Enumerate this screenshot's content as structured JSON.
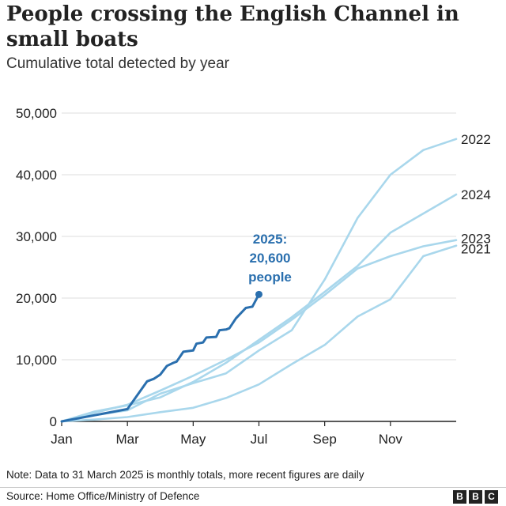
{
  "title": "People crossing the English Channel in small boats",
  "subtitle": "Cumulative total detected by year",
  "note": "Note: Data to 31 March 2025 is monthly totals, more recent figures are daily",
  "source": "Source: Home Office/Ministry of Defence",
  "logo": {
    "letters": [
      "B",
      "B",
      "C"
    ]
  },
  "colors": {
    "past_years": "#a9d7ec",
    "current_year": "#2a6fae",
    "grid": "#dcdcdc",
    "axis": "#222222"
  },
  "chart_data": {
    "type": "line",
    "title": "People crossing the English Channel in small boats",
    "subtitle": "Cumulative total detected by year",
    "xlabel": "",
    "ylabel": "",
    "xlim": [
      0,
      12
    ],
    "ylim": [
      0,
      50000
    ],
    "grid": true,
    "x_ticks": [
      {
        "value": 0,
        "label": "Jan"
      },
      {
        "value": 2,
        "label": "Mar"
      },
      {
        "value": 4,
        "label": "May"
      },
      {
        "value": 6,
        "label": "Jul"
      },
      {
        "value": 8,
        "label": "Sep"
      },
      {
        "value": 10,
        "label": "Nov"
      }
    ],
    "y_ticks": [
      {
        "value": 0,
        "label": "0"
      },
      {
        "value": 10000,
        "label": "10,000"
      },
      {
        "value": 20000,
        "label": "20,000"
      },
      {
        "value": 30000,
        "label": "30,000"
      },
      {
        "value": 40000,
        "label": "40,000"
      },
      {
        "value": 50000,
        "label": "50,000"
      }
    ],
    "series": [
      {
        "name": "2021",
        "color": "#a9d7ec",
        "x": [
          0,
          1,
          2,
          3,
          4,
          5,
          6,
          7,
          8,
          9,
          10,
          11,
          12
        ],
        "y": [
          0,
          300,
          700,
          1500,
          2200,
          3800,
          6000,
          9300,
          12400,
          17000,
          19800,
          26800,
          28500
        ]
      },
      {
        "name": "2022",
        "color": "#a9d7ec",
        "x": [
          0,
          1,
          2,
          3,
          4,
          5,
          6,
          7,
          8,
          9,
          10,
          11,
          12
        ],
        "y": [
          0,
          1000,
          1800,
          4500,
          6200,
          7800,
          11500,
          14800,
          23000,
          33000,
          40000,
          44000,
          45800
        ]
      },
      {
        "name": "2023",
        "color": "#a9d7ec",
        "x": [
          0,
          1,
          2,
          3,
          4,
          5,
          6,
          7,
          8,
          9,
          10,
          11,
          12
        ],
        "y": [
          0,
          1400,
          2700,
          5000,
          7400,
          10000,
          12800,
          16500,
          20500,
          24800,
          26800,
          28400,
          29400
        ]
      },
      {
        "name": "2024",
        "color": "#a9d7ec",
        "x": [
          0,
          1,
          2,
          3,
          4,
          5,
          6,
          7,
          8,
          9,
          10,
          11,
          12
        ],
        "y": [
          0,
          1600,
          2600,
          3900,
          6400,
          9500,
          13200,
          16900,
          21000,
          25200,
          30600,
          33700,
          36800
        ]
      },
      {
        "name": "2025",
        "color": "#2a6fae",
        "x": [
          0,
          1,
          2,
          2.6,
          2.8,
          3.0,
          3.2,
          3.4,
          3.5,
          3.7,
          4.0,
          4.1,
          4.3,
          4.4,
          4.7,
          4.8,
          5.0,
          5.1,
          5.3,
          5.6,
          5.7,
          5.8,
          6.0
        ],
        "y": [
          0,
          1000,
          2000,
          6500,
          6900,
          7600,
          9000,
          9500,
          9700,
          11300,
          11500,
          12600,
          12800,
          13600,
          13700,
          14800,
          14900,
          15100,
          16700,
          18400,
          18500,
          18600,
          20600
        ]
      }
    ],
    "annotations": [
      {
        "series": "2025",
        "lines": [
          "2025:",
          "20,600",
          "people"
        ],
        "x": 6,
        "y": 20600
      }
    ]
  }
}
